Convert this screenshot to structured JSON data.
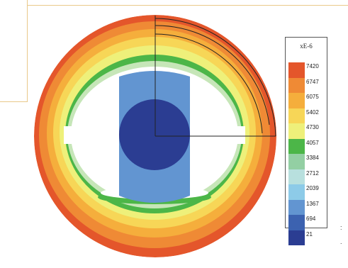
{
  "legend": {
    "title": "xE-6",
    "entries": [
      {
        "label": "7420",
        "color": "#e4562b"
      },
      {
        "label": "6747",
        "color": "#ef8a35"
      },
      {
        "label": "6075",
        "color": "#f5ae3c"
      },
      {
        "label": "5402",
        "color": "#f7d657"
      },
      {
        "label": "4730",
        "color": "#eef07a"
      },
      {
        "label": "4057",
        "color": "#4cb648"
      },
      {
        "label": "3384",
        "color": "#93cfa3"
      },
      {
        "label": "2712",
        "color": "#b8e0de"
      },
      {
        "label": "2039",
        "color": "#8dcbe8"
      },
      {
        "label": "1367",
        "color": "#6295d1"
      },
      {
        "label": "694",
        "color": "#3c62b0"
      },
      {
        "label": "21",
        "color": "#2b3d92"
      }
    ]
  },
  "side_marks": [
    ":",
    "."
  ]
}
